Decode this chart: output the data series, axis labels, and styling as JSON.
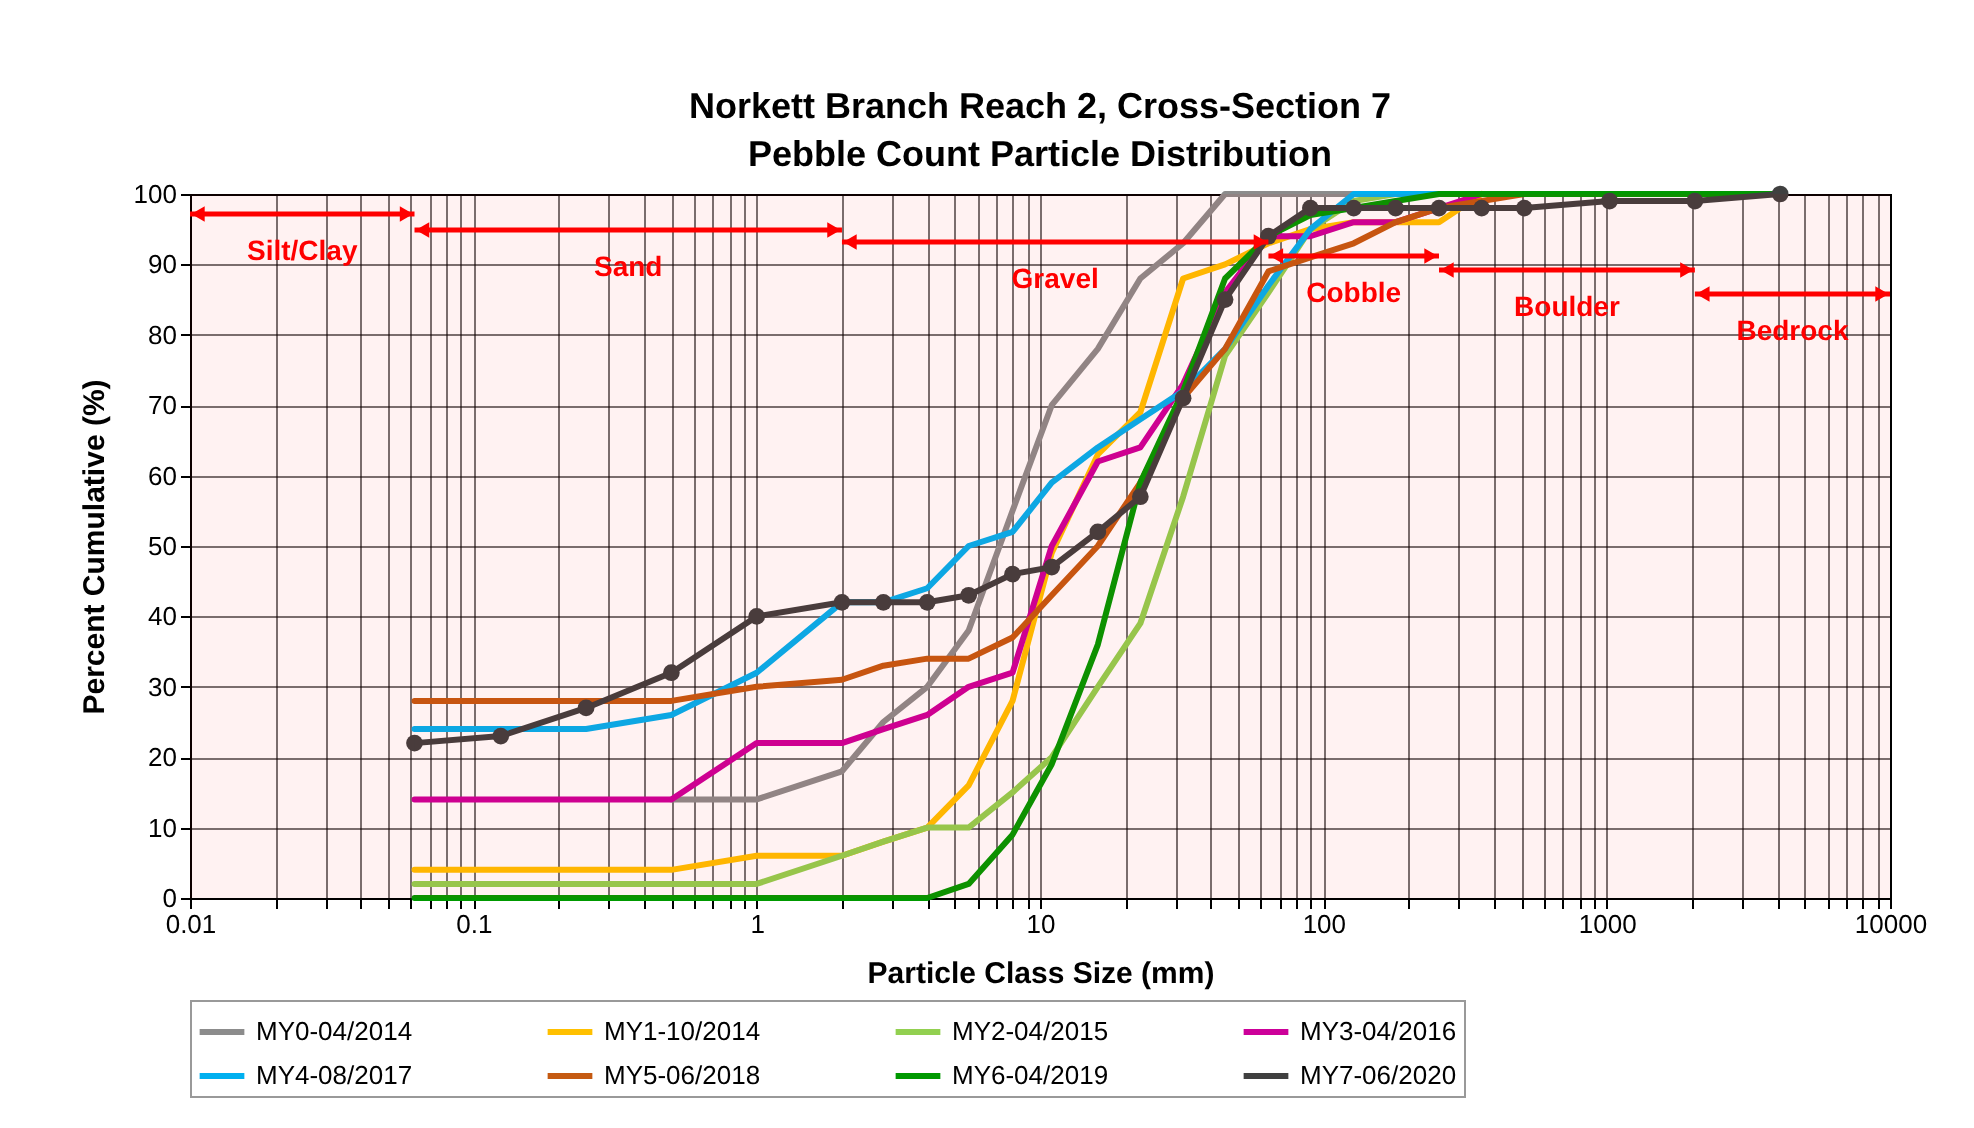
{
  "chart_data": {
    "type": "line",
    "title": "Norkett Branch Reach 2, Cross-Section 7\nPebble Count Particle Distribution",
    "xlabel": "Particle Class Size (mm)",
    "ylabel": "Percent Cumulative (%)",
    "log": "x",
    "grid": true,
    "legend": "bottom",
    "line_style": "solid",
    "x": [
      0.062,
      0.125,
      0.25,
      0.5,
      1,
      2,
      2.8,
      4,
      5.6,
      8,
      11,
      16,
      22.6,
      32,
      45,
      64,
      90,
      128,
      180,
      256,
      362,
      512,
      1024,
      2048,
      4096
    ],
    "xlim": [
      0.01,
      10000
    ],
    "xticks": [
      0.01,
      {
        "value": 0.02,
        "label": null
      },
      {
        "value": 0.03,
        "label": null
      },
      {
        "value": 0.04,
        "label": null
      },
      {
        "value": 0.05,
        "label": null
      },
      {
        "value": 0.06,
        "label": null
      },
      {
        "value": 0.07,
        "label": null
      },
      {
        "value": 0.08,
        "label": null
      },
      {
        "value": 0.09,
        "label": null
      },
      0.1,
      {
        "value": 0.2,
        "label": null
      },
      {
        "value": 0.3,
        "label": null
      },
      {
        "value": 0.4,
        "label": null
      },
      {
        "value": 0.5,
        "label": null
      },
      {
        "value": 0.6,
        "label": null
      },
      {
        "value": 0.7,
        "label": null
      },
      {
        "value": 0.8,
        "label": null
      },
      {
        "value": 0.9,
        "label": null
      },
      1,
      {
        "value": 2,
        "label": null
      },
      {
        "value": 3,
        "label": null
      },
      {
        "value": 4,
        "label": null
      },
      {
        "value": 5,
        "label": null
      },
      {
        "value": 6,
        "label": null
      },
      {
        "value": 7,
        "label": null
      },
      {
        "value": 8,
        "label": null
      },
      {
        "value": 9,
        "label": null
      },
      10,
      {
        "value": 20,
        "label": null
      },
      {
        "value": 30,
        "label": null
      },
      {
        "value": 40,
        "label": null
      },
      {
        "value": 50,
        "label": null
      },
      {
        "value": 60,
        "label": null
      },
      {
        "value": 70,
        "label": null
      },
      {
        "value": 80,
        "label": null
      },
      {
        "value": 90,
        "label": null
      },
      100,
      {
        "value": 200,
        "label": null
      },
      {
        "value": 300,
        "label": null
      },
      {
        "value": 400,
        "label": null
      },
      {
        "value": 500,
        "label": null
      },
      {
        "value": 600,
        "label": null
      },
      {
        "value": 700,
        "label": null
      },
      {
        "value": 800,
        "label": null
      },
      {
        "value": 900,
        "label": null
      },
      1000,
      {
        "value": 2000,
        "label": null
      },
      {
        "value": 3000,
        "label": null
      },
      {
        "value": 4000,
        "label": null
      },
      {
        "value": 5000,
        "label": null
      },
      {
        "value": 6000,
        "label": null
      },
      {
        "value": 7000,
        "label": null
      },
      {
        "value": 8000,
        "label": null
      },
      {
        "value": 9000,
        "label": null
      },
      10000
    ],
    "ylim": [
      0,
      100
    ],
    "yticks": [
      0,
      10,
      20,
      30,
      40,
      50,
      60,
      70,
      80,
      90,
      100
    ],
    "series": [
      {
        "name": "MY0-04/2014",
        "color": "#8c8c8c",
        "values": [
          null,
          null,
          null,
          14,
          14,
          18,
          25,
          30,
          38,
          55,
          70,
          78,
          88,
          93,
          100,
          100,
          100,
          100,
          100,
          100,
          null,
          null,
          null,
          null,
          null
        ]
      },
      {
        "name": "MY1-10/2014",
        "color": "#ffc000",
        "values": [
          4,
          4,
          4,
          4,
          6,
          6,
          8,
          10,
          16,
          28,
          49,
          63,
          69,
          88,
          90,
          93,
          95,
          96,
          96,
          96,
          100,
          null,
          null,
          null,
          null
        ]
      },
      {
        "name": "MY2-04/2015",
        "color": "#92d050",
        "values": [
          2,
          2,
          2,
          2,
          2,
          6,
          8,
          10,
          10,
          15,
          20,
          30,
          39,
          57,
          77,
          86,
          95,
          99,
          100,
          100,
          null,
          null,
          null,
          null,
          null
        ]
      },
      {
        "name": "MY3-04/2016",
        "color": "#cc0099",
        "values": [
          14,
          14,
          14,
          14,
          22,
          22,
          24,
          26,
          30,
          32,
          50,
          62,
          64,
          73,
          86,
          94,
          94,
          96,
          96,
          98,
          100,
          null,
          null,
          null,
          null
        ]
      },
      {
        "name": "MY4-08/2017",
        "color": "#00b0f0",
        "values": [
          24,
          24,
          24,
          26,
          32,
          42,
          42,
          44,
          50,
          52,
          59,
          64,
          68,
          72,
          78,
          87,
          95,
          100,
          100,
          100,
          null,
          null,
          null,
          null,
          null
        ]
      },
      {
        "name": "MY5-06/2018",
        "color": "#c55a11",
        "values": [
          28,
          28,
          28,
          28,
          30,
          31,
          33,
          34,
          34,
          37,
          43,
          50,
          59,
          71,
          78,
          89,
          91,
          93,
          96,
          98,
          99,
          100,
          null,
          null,
          null
        ]
      },
      {
        "name": "MY6-04/2019",
        "color": "#009900",
        "values": [
          0,
          0,
          0,
          0,
          0,
          0,
          0,
          0,
          2,
          9,
          19,
          36,
          59,
          72,
          88,
          94,
          97,
          98,
          99,
          100,
          100,
          100,
          100,
          100,
          100
        ]
      },
      {
        "name": "MY7-06/2020",
        "color": "#404040",
        "marker": "circle",
        "values": [
          22,
          23,
          27,
          32,
          40,
          42,
          42,
          42,
          43,
          46,
          47,
          52,
          57,
          71,
          85,
          94,
          98,
          98,
          98,
          98,
          98,
          98,
          99,
          99,
          100
        ]
      }
    ],
    "bands": [
      {
        "axis": "x",
        "from": 0.01,
        "to": 0.062,
        "label": "Silt/Clay",
        "color": "#ff0000"
      },
      {
        "axis": "x",
        "from": 0.062,
        "to": 2,
        "label": "Sand",
        "color": "#ff0000"
      },
      {
        "axis": "x",
        "from": 2,
        "to": 64,
        "label": "Gravel",
        "color": "#ff0000"
      },
      {
        "axis": "x",
        "from": 64,
        "to": 256,
        "label": "Cobble",
        "color": "#ff0000"
      },
      {
        "axis": "x",
        "from": 256,
        "to": 2048,
        "label": "Boulder",
        "color": "#ff0000"
      },
      {
        "axis": "x",
        "from": 2048,
        "to": 10000,
        "label": "Bedrock",
        "color": "#ff0000"
      }
    ]
  }
}
